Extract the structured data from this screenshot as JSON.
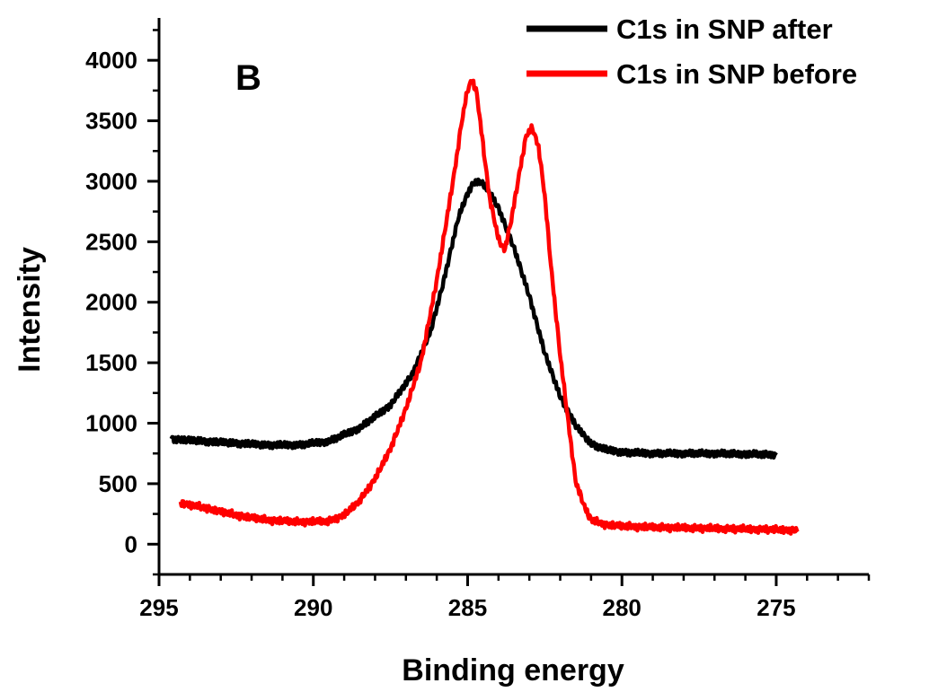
{
  "chart_data": {
    "type": "line",
    "panel_label": "B",
    "xlabel": "Binding energy",
    "ylabel": "Intensity",
    "xlim": [
      295,
      272
    ],
    "ylim": [
      -250,
      4350
    ],
    "x_reversed": true,
    "xticks": [
      295,
      290,
      285,
      280,
      275
    ],
    "yticks": [
      0,
      500,
      1000,
      1500,
      2000,
      2500,
      3000,
      3500,
      4000
    ],
    "grid": false,
    "legend_position": "top-right",
    "colors": {
      "after": "#000000",
      "before": "#ff0000"
    },
    "series": [
      {
        "name": "C1s in SNP after",
        "color": "#000000",
        "x": [
          294.6,
          293.5,
          292.5,
          291.5,
          290.5,
          289.5,
          288.5,
          287.5,
          286.8,
          286.2,
          285.8,
          285.5,
          285.3,
          285.0,
          284.8,
          284.6,
          284.4,
          284.0,
          283.5,
          283.0,
          282.5,
          282.0,
          281.5,
          281.0,
          280.5,
          280.0,
          279.0,
          278.0,
          277.0,
          276.0,
          275.0
        ],
        "y": [
          870,
          850,
          835,
          820,
          820,
          850,
          960,
          1150,
          1400,
          1760,
          2150,
          2480,
          2700,
          2900,
          2990,
          3000,
          2950,
          2780,
          2450,
          2050,
          1580,
          1220,
          980,
          830,
          780,
          760,
          750,
          750,
          750,
          745,
          740
        ]
      },
      {
        "name": "C1s in SNP before",
        "color": "#ff0000",
        "x": [
          294.3,
          293.5,
          292.5,
          291.5,
          290.5,
          289.5,
          289.0,
          288.5,
          288.0,
          287.5,
          287.0,
          286.5,
          286.0,
          285.7,
          285.4,
          285.2,
          285.0,
          284.85,
          284.7,
          284.5,
          284.3,
          284.0,
          283.8,
          283.6,
          283.3,
          283.1,
          282.9,
          282.7,
          282.5,
          282.3,
          282.0,
          281.7,
          281.5,
          281.2,
          281.0,
          280.5,
          280.0,
          279.0,
          278.0,
          277.0,
          276.0,
          275.0,
          274.3
        ],
        "y": [
          340,
          300,
          240,
          200,
          185,
          190,
          240,
          360,
          540,
          790,
          1120,
          1520,
          2180,
          2650,
          3120,
          3480,
          3760,
          3840,
          3720,
          3300,
          2880,
          2520,
          2430,
          2660,
          3100,
          3380,
          3440,
          3280,
          2880,
          2300,
          1560,
          930,
          520,
          300,
          200,
          160,
          150,
          140,
          135,
          130,
          125,
          120,
          115
        ]
      }
    ]
  }
}
